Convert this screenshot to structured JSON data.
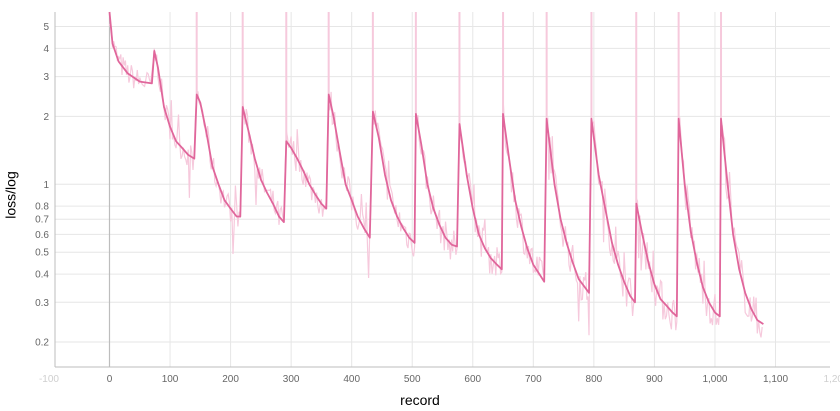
{
  "chart_data": {
    "type": "line",
    "xlabel": "record",
    "ylabel": "loss/log",
    "y_scale": "log",
    "grid": true,
    "xlim": [
      -90,
      1190
    ],
    "ylim": [
      0.155,
      5.8
    ],
    "x_ticks": [
      "0",
      "100",
      "200",
      "300",
      "400",
      "500",
      "600",
      "700",
      "800",
      "900",
      "1,000",
      "1,100"
    ],
    "x_ticks_faded": [
      "-100",
      "1,200"
    ],
    "y_ticks": [
      "0.2",
      "0.3",
      "0.4",
      "0.5",
      "0.6",
      "0.7",
      "0.8",
      "1",
      "2",
      "3",
      "4",
      "5"
    ],
    "colors": {
      "smoothed": "#e0669b",
      "raw": "#f6c9dc",
      "grid": "#e6e6e6",
      "axis": "#bdbdbd"
    },
    "series": [
      {
        "smoothed": true,
        "points": [
          [
            0,
            5.8
          ],
          [
            5,
            4.2
          ],
          [
            15,
            3.5
          ],
          [
            30,
            3.1
          ],
          [
            50,
            2.85
          ],
          [
            70,
            2.8
          ],
          [
            74,
            3.9
          ],
          [
            80,
            3.3
          ],
          [
            90,
            2.2
          ],
          [
            100,
            1.8
          ],
          [
            110,
            1.55
          ],
          [
            120,
            1.45
          ],
          [
            130,
            1.35
          ],
          [
            140,
            1.3
          ],
          [
            144,
            2.5
          ],
          [
            150,
            2.3
          ],
          [
            160,
            1.7
          ],
          [
            170,
            1.2
          ],
          [
            180,
            1.0
          ],
          [
            190,
            0.85
          ],
          [
            200,
            0.78
          ],
          [
            210,
            0.72
          ],
          [
            216,
            0.72
          ],
          [
            220,
            2.2
          ],
          [
            230,
            1.7
          ],
          [
            240,
            1.3
          ],
          [
            250,
            1.05
          ],
          [
            260,
            0.92
          ],
          [
            270,
            0.82
          ],
          [
            280,
            0.72
          ],
          [
            288,
            0.68
          ],
          [
            292,
            1.55
          ],
          [
            300,
            1.45
          ],
          [
            310,
            1.3
          ],
          [
            320,
            1.15
          ],
          [
            330,
            1.0
          ],
          [
            340,
            0.9
          ],
          [
            350,
            0.82
          ],
          [
            358,
            0.78
          ],
          [
            362,
            2.5
          ],
          [
            370,
            2.0
          ],
          [
            380,
            1.4
          ],
          [
            390,
            1.0
          ],
          [
            400,
            0.85
          ],
          [
            410,
            0.72
          ],
          [
            420,
            0.64
          ],
          [
            430,
            0.58
          ],
          [
            435,
            2.1
          ],
          [
            445,
            1.6
          ],
          [
            455,
            1.1
          ],
          [
            465,
            0.85
          ],
          [
            475,
            0.72
          ],
          [
            485,
            0.64
          ],
          [
            495,
            0.58
          ],
          [
            504,
            0.55
          ],
          [
            506,
            2.05
          ],
          [
            515,
            1.5
          ],
          [
            525,
            1.0
          ],
          [
            535,
            0.78
          ],
          [
            545,
            0.66
          ],
          [
            555,
            0.58
          ],
          [
            565,
            0.54
          ],
          [
            574,
            0.53
          ],
          [
            578,
            1.85
          ],
          [
            590,
            1.1
          ],
          [
            600,
            0.78
          ],
          [
            610,
            0.6
          ],
          [
            620,
            0.52
          ],
          [
            630,
            0.47
          ],
          [
            640,
            0.44
          ],
          [
            648,
            0.42
          ],
          [
            650,
            2.05
          ],
          [
            660,
            1.3
          ],
          [
            670,
            0.85
          ],
          [
            680,
            0.65
          ],
          [
            690,
            0.52
          ],
          [
            700,
            0.44
          ],
          [
            710,
            0.4
          ],
          [
            718,
            0.37
          ],
          [
            722,
            1.95
          ],
          [
            735,
            1.0
          ],
          [
            745,
            0.7
          ],
          [
            755,
            0.55
          ],
          [
            765,
            0.45
          ],
          [
            775,
            0.38
          ],
          [
            785,
            0.35
          ],
          [
            792,
            0.33
          ],
          [
            796,
            1.95
          ],
          [
            808,
            1.1
          ],
          [
            820,
            0.75
          ],
          [
            830,
            0.55
          ],
          [
            840,
            0.44
          ],
          [
            850,
            0.37
          ],
          [
            860,
            0.32
          ],
          [
            868,
            0.3
          ],
          [
            870,
            0.82
          ],
          [
            880,
            0.6
          ],
          [
            890,
            0.45
          ],
          [
            900,
            0.36
          ],
          [
            910,
            0.31
          ],
          [
            920,
            0.29
          ],
          [
            930,
            0.27
          ],
          [
            937,
            0.26
          ],
          [
            940,
            1.95
          ],
          [
            950,
            1.0
          ],
          [
            960,
            0.62
          ],
          [
            970,
            0.45
          ],
          [
            980,
            0.35
          ],
          [
            990,
            0.3
          ],
          [
            1000,
            0.27
          ],
          [
            1008,
            0.26
          ],
          [
            1010,
            1.95
          ],
          [
            1020,
            1.05
          ],
          [
            1030,
            0.6
          ],
          [
            1040,
            0.42
          ],
          [
            1050,
            0.33
          ],
          [
            1060,
            0.28
          ],
          [
            1070,
            0.25
          ],
          [
            1080,
            0.24
          ]
        ]
      }
    ]
  }
}
